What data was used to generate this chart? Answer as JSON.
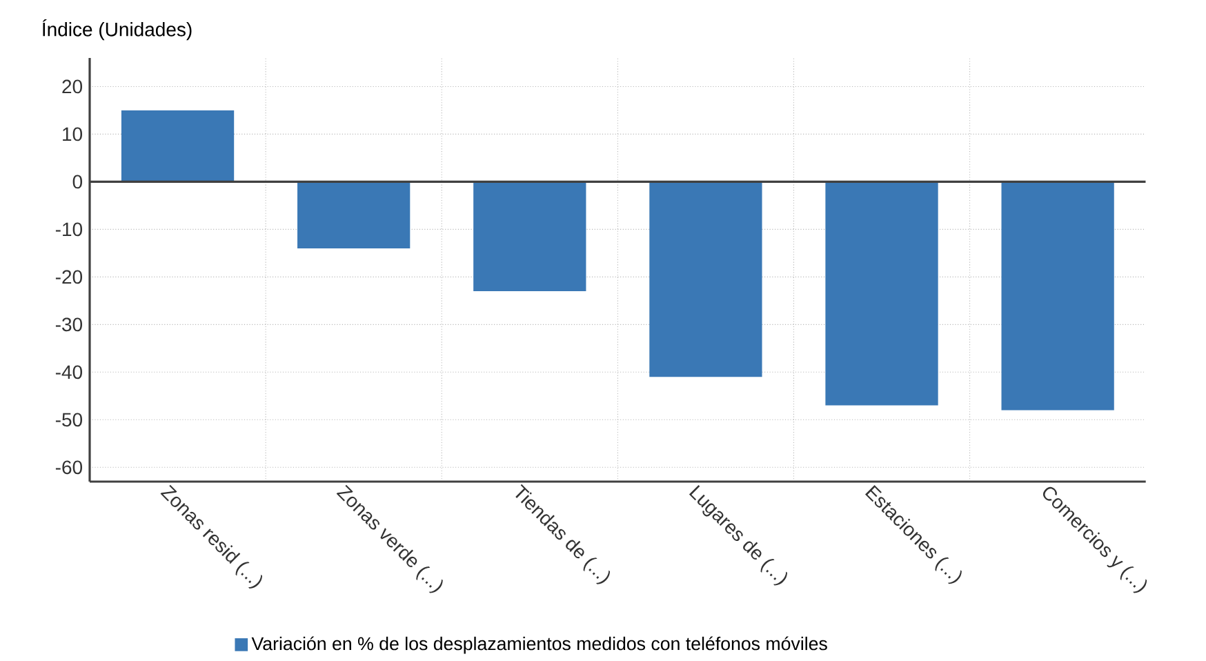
{
  "chart_data": {
    "type": "bar",
    "ylabel": "Índice (Unidades)",
    "categories": [
      "Zonas resid (...)",
      "Zonas verde (...)",
      "Tiendas de (...)",
      "Lugares de (...)",
      "Estaciones (...)",
      "Comercios y (...)"
    ],
    "series": [
      {
        "name": "Variación en % de los desplazamientos medidos con teléfonos móviles",
        "color": "#3a78b5",
        "values": [
          15,
          -14,
          -23,
          -41,
          -47,
          -48
        ]
      }
    ],
    "ylim": [
      -63,
      26
    ],
    "yticks": [
      -60,
      -50,
      -40,
      -30,
      -20,
      -10,
      0,
      10,
      20
    ],
    "grid": true,
    "legend": "bottom"
  }
}
